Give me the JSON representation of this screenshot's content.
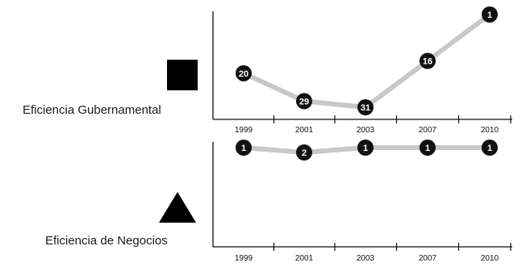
{
  "chart_data": [
    {
      "type": "line",
      "label": "Eficiencia Gubernamental",
      "symbol": "square-icon",
      "categories": [
        "1999",
        "2001",
        "2003",
        "2007",
        "2010"
      ],
      "values": [
        20,
        29,
        31,
        16,
        1
      ],
      "y_reversed": true,
      "ylim": [
        1,
        31
      ],
      "line_color": "#c8c8c8",
      "marker_color": "#111111"
    },
    {
      "type": "line",
      "label": "Eficiencia de Negocios",
      "symbol": "triangle-icon",
      "categories": [
        "1999",
        "2001",
        "2003",
        "2007",
        "2010"
      ],
      "values": [
        1,
        2,
        1,
        1,
        1
      ],
      "y_reversed": true,
      "ylim": [
        1,
        2
      ],
      "line_color": "#c8c8c8",
      "marker_color": "#111111"
    }
  ]
}
